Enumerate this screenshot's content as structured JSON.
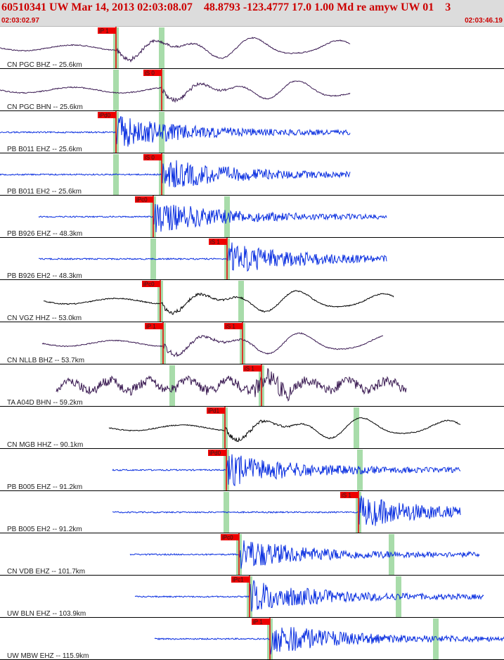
{
  "header": {
    "title": "60510341 UW Mar 14, 2013 02:03:08.07    48.8793 -123.4777 17.0 1.00 Md re amyw UW 01    3",
    "time_start": "02:03:02.97",
    "time_end": "02:03:46.19"
  },
  "colors": {
    "dark_trace": "#3a1a52",
    "blue_trace": "#0a2fe0",
    "black_trace": "#000000",
    "pick_box": "#ee0000",
    "marker_band": "#a8dcaa",
    "header_text": "#cc0000"
  },
  "traces": [
    {
      "label": "CN PGC BHZ -- 25.6km",
      "color": "dark",
      "pick": "iP 1",
      "style": "long"
    },
    {
      "label": "CN PGC BHN -- 25.6km",
      "color": "dark",
      "pick": "iS 0",
      "style": "long"
    },
    {
      "label": "PB B011 EHZ -- 25.6km",
      "color": "blue",
      "pick": "iPd0",
      "style": "quake"
    },
    {
      "label": "PB B011 EH2 -- 25.6km",
      "color": "blue",
      "pick": "iS 0",
      "style": "quake"
    },
    {
      "label": "PB B926 EHZ -- 48.3km",
      "color": "blue",
      "pick": "iPc0",
      "style": "quake"
    },
    {
      "label": "PB B926 EH2 -- 48.3km",
      "color": "blue",
      "pick": "iS 1",
      "style": "quake"
    },
    {
      "label": "CN VGZ HHZ -- 53.0km",
      "color": "black",
      "pick": "iPc0",
      "style": "long"
    },
    {
      "label": "CN NLLB BHZ -- 53.7km",
      "color": "dark",
      "pick": "iP 1",
      "pick2": "iS 1",
      "style": "long"
    },
    {
      "label": "TA A04D BHN -- 59.2km",
      "color": "dark",
      "pick": "iS 1",
      "style": "noisy"
    },
    {
      "label": "CN MGB HHZ -- 90.1km",
      "color": "black",
      "pick": "iPd1",
      "style": "long"
    },
    {
      "label": "PB B005 EHZ -- 91.2km",
      "color": "blue",
      "pick": "iPd0",
      "style": "quake"
    },
    {
      "label": "PB B005 EH2 -- 91.2km",
      "color": "blue",
      "pick": "iS 1",
      "style": "quake"
    },
    {
      "label": "CN VDB EHZ -- 101.7km",
      "color": "blue",
      "pick": "iPc0",
      "style": "quake"
    },
    {
      "label": "UW BLN EHZ -- 103.9km",
      "color": "blue",
      "pick": "iPc1",
      "style": "quake"
    },
    {
      "label": "UW MBW EHZ -- 115.9km",
      "color": "blue",
      "pick": "iP 1",
      "style": "quake"
    }
  ]
}
